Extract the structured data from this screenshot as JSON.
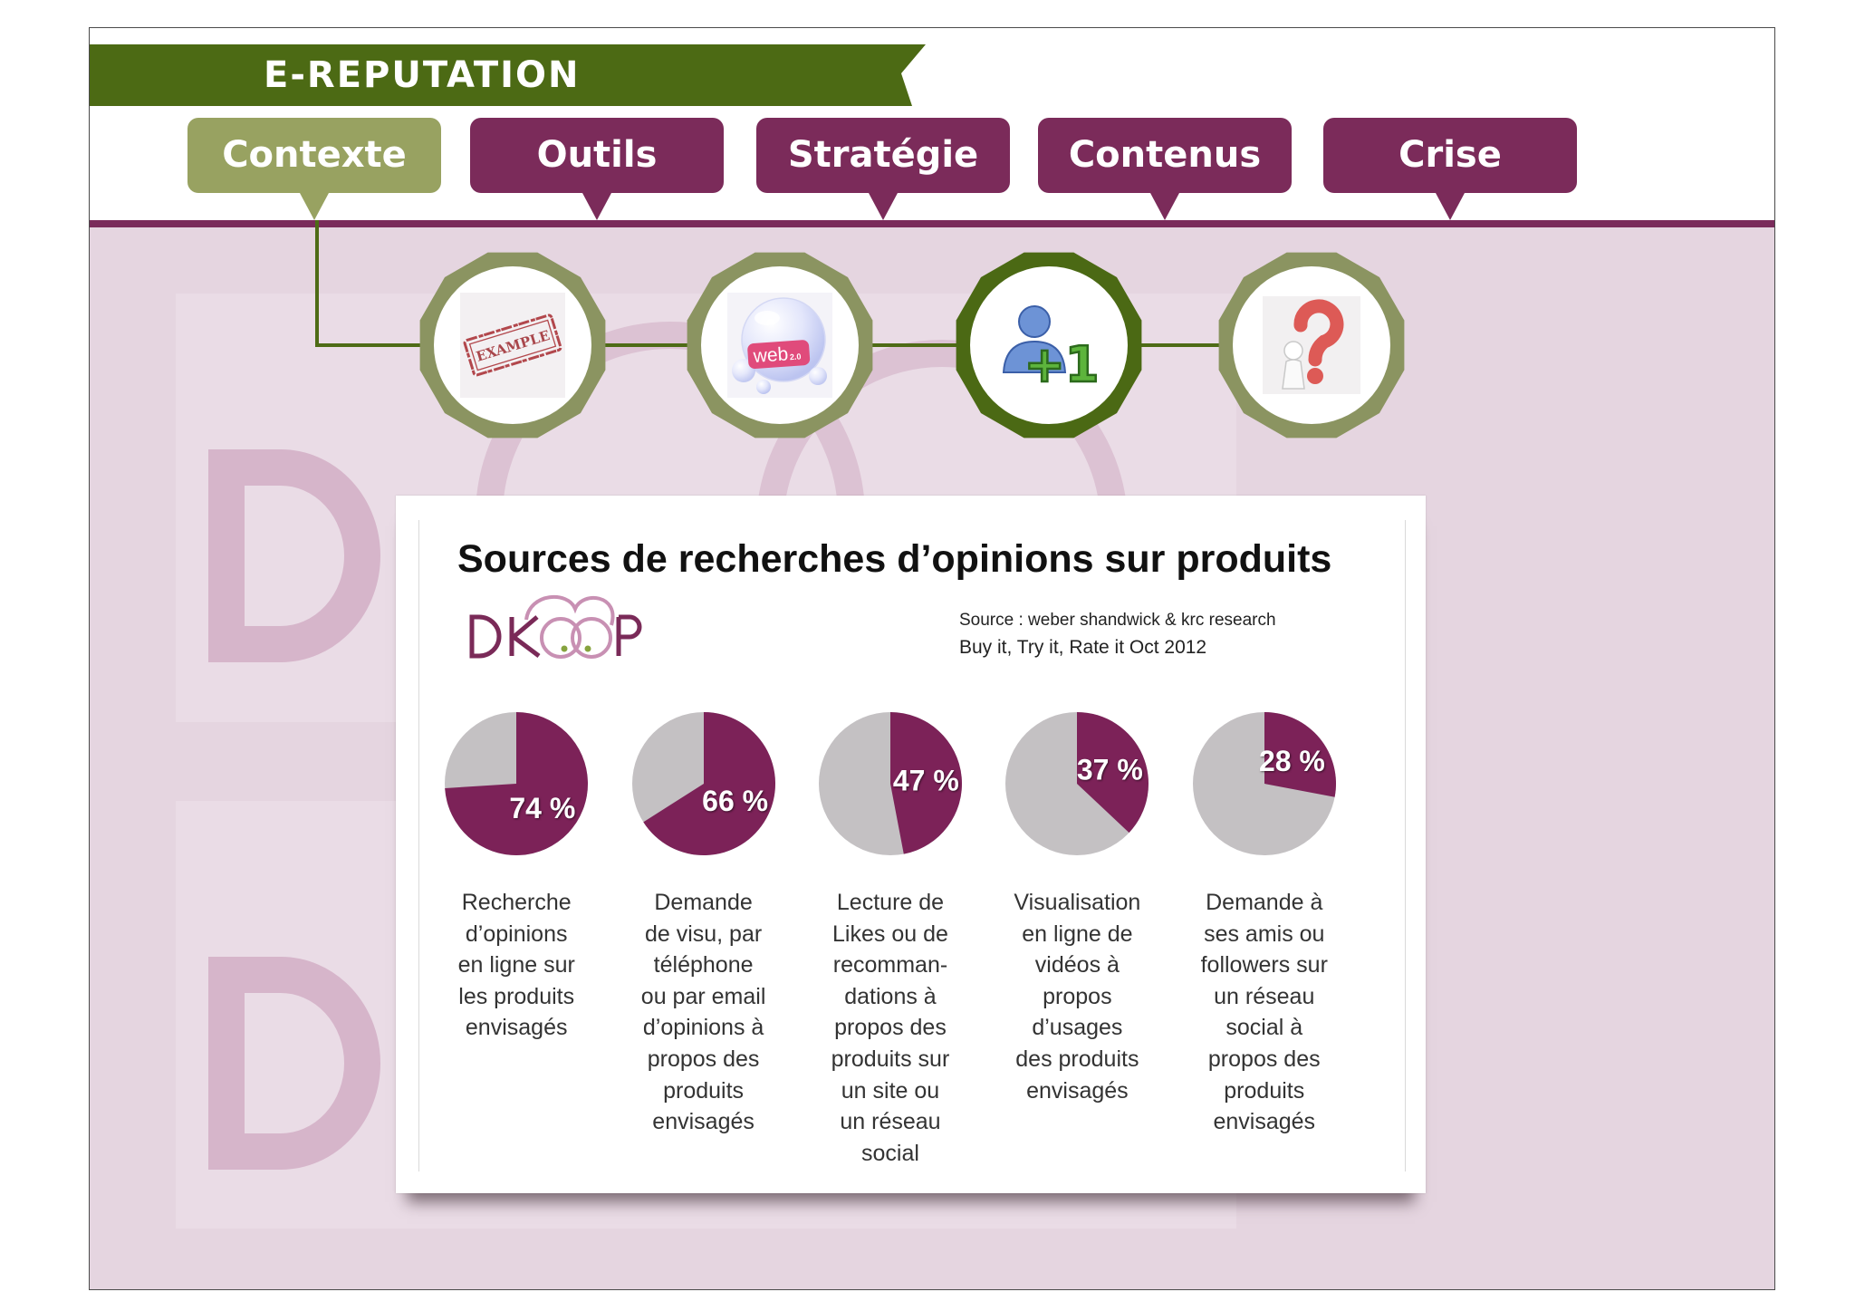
{
  "header": {
    "banner": "E-REPUTATION",
    "tabs": [
      {
        "label": "Contexte",
        "active": true
      },
      {
        "label": "Outils",
        "active": false
      },
      {
        "label": "Stratégie",
        "active": false
      },
      {
        "label": "Contenus",
        "active": false
      },
      {
        "label": "Crise",
        "active": false
      }
    ]
  },
  "steps": [
    {
      "icon": "example-stamp-icon",
      "stamp_text": "EXAMPLE",
      "active": false
    },
    {
      "icon": "web2-bubble-icon",
      "tag_text": "web",
      "tag_version": "2.0",
      "active": false
    },
    {
      "icon": "plus-one-user-icon",
      "badge": "+1",
      "active": true
    },
    {
      "icon": "question-mark-person-icon",
      "active": false
    }
  ],
  "card": {
    "title": "Sources de recherches d’opinions sur produits",
    "logo": "DKOOP",
    "source": "Source : weber shandwick & krc research",
    "study": "Buy it, Try it, Rate it Oct 2012"
  },
  "theme": {
    "banner": "#4c6a14",
    "tab": "#7b2b5a",
    "tab_active": "#98a261",
    "stripe": "#7a2b5b",
    "ring": "#8b9461",
    "ring_active": "#4b6914",
    "background": "#e5d5e0"
  },
  "chart_data": [
    {
      "type": "pie",
      "values": [
        74,
        26
      ],
      "value_label": "74 %",
      "colors": [
        "#7c2258",
        "#c4c1c3"
      ],
      "caption": "Recherche\nd’opinions\nen ligne sur\nles produits\nenvisagés"
    },
    {
      "type": "pie",
      "values": [
        66,
        34
      ],
      "value_label": "66 %",
      "colors": [
        "#7c2258",
        "#c4c1c3"
      ],
      "caption": "Demande\nde visu, par\ntéléphone\nou par email\nd’opinions à\npropos des\nproduits\nenvisagés"
    },
    {
      "type": "pie",
      "values": [
        47,
        53
      ],
      "value_label": "47 %",
      "colors": [
        "#7c2258",
        "#c4c1c3"
      ],
      "caption": "Lecture de\nLikes ou de\nrecomman-\ndations à\npropos des\nproduits sur\nun site ou\nun réseau\nsocial"
    },
    {
      "type": "pie",
      "values": [
        37,
        63
      ],
      "value_label": "37 %",
      "colors": [
        "#7c2258",
        "#c4c1c3"
      ],
      "caption": "Visualisation\nen ligne de\nvidéos à\npropos\nd’usages\ndes produits\nenvisagés"
    },
    {
      "type": "pie",
      "values": [
        28,
        72
      ],
      "value_label": "28 %",
      "colors": [
        "#7c2258",
        "#c4c1c3"
      ],
      "caption": "Demande à\nses amis ou\nfollowers sur\nun réseau\nsocial à\npropos des\nproduits\nenvisagés"
    }
  ]
}
